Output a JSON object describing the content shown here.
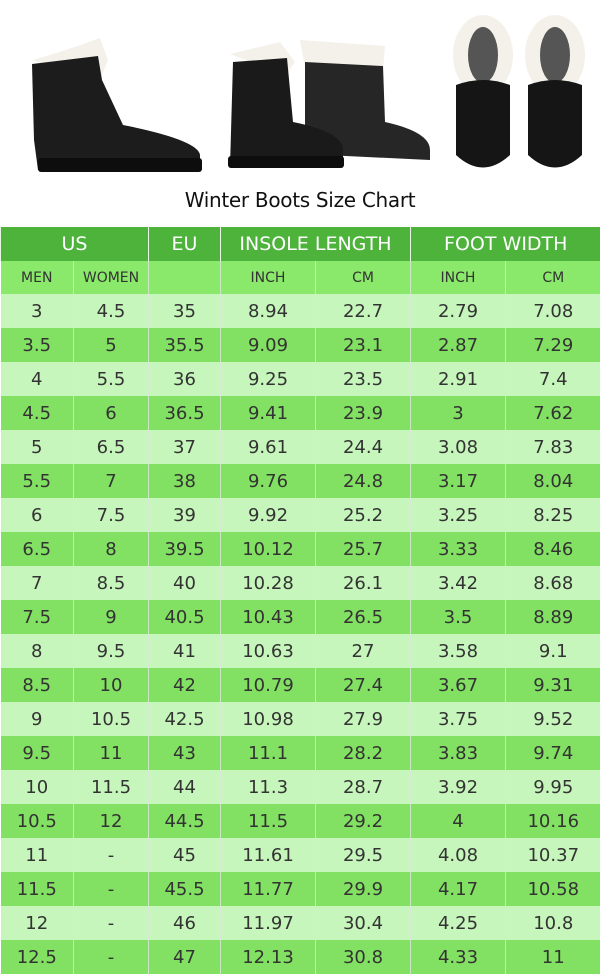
{
  "title": "Winter Boots Size Chart",
  "images": [
    {
      "icon": "boot-side-icon"
    },
    {
      "icon": "boot-pair-angled-icon"
    },
    {
      "icon": "boot-pair-top-icon"
    }
  ],
  "colors": {
    "header": "#4db33b",
    "subheader": "#8ae86a",
    "row_light": "#c6f6bb",
    "row_dark": "#82e062"
  },
  "header": {
    "groups": [
      "US",
      "EU",
      "INSOLE LENGTH",
      "FOOT WIDTH"
    ],
    "sub": [
      "MEN",
      "WOMEN",
      "",
      "INCH",
      "CM",
      "INCH",
      "CM"
    ]
  },
  "rows": [
    [
      "3",
      "4.5",
      "35",
      "8.94",
      "22.7",
      "2.79",
      "7.08"
    ],
    [
      "3.5",
      "5",
      "35.5",
      "9.09",
      "23.1",
      "2.87",
      "7.29"
    ],
    [
      "4",
      "5.5",
      "36",
      "9.25",
      "23.5",
      "2.91",
      "7.4"
    ],
    [
      "4.5",
      "6",
      "36.5",
      "9.41",
      "23.9",
      "3",
      "7.62"
    ],
    [
      "5",
      "6.5",
      "37",
      "9.61",
      "24.4",
      "3.08",
      "7.83"
    ],
    [
      "5.5",
      "7",
      "38",
      "9.76",
      "24.8",
      "3.17",
      "8.04"
    ],
    [
      "6",
      "7.5",
      "39",
      "9.92",
      "25.2",
      "3.25",
      "8.25"
    ],
    [
      "6.5",
      "8",
      "39.5",
      "10.12",
      "25.7",
      "3.33",
      "8.46"
    ],
    [
      "7",
      "8.5",
      "40",
      "10.28",
      "26.1",
      "3.42",
      "8.68"
    ],
    [
      "7.5",
      "9",
      "40.5",
      "10.43",
      "26.5",
      "3.5",
      "8.89"
    ],
    [
      "8",
      "9.5",
      "41",
      "10.63",
      "27",
      "3.58",
      "9.1"
    ],
    [
      "8.5",
      "10",
      "42",
      "10.79",
      "27.4",
      "3.67",
      "9.31"
    ],
    [
      "9",
      "10.5",
      "42.5",
      "10.98",
      "27.9",
      "3.75",
      "9.52"
    ],
    [
      "9.5",
      "11",
      "43",
      "11.1",
      "28.2",
      "3.83",
      "9.74"
    ],
    [
      "10",
      "11.5",
      "44",
      "11.3",
      "28.7",
      "3.92",
      "9.95"
    ],
    [
      "10.5",
      "12",
      "44.5",
      "11.5",
      "29.2",
      "4",
      "10.16"
    ],
    [
      "11",
      "-",
      "45",
      "11.61",
      "29.5",
      "4.08",
      "10.37"
    ],
    [
      "11.5",
      "-",
      "45.5",
      "11.77",
      "29.9",
      "4.17",
      "10.58"
    ],
    [
      "12",
      "-",
      "46",
      "11.97",
      "30.4",
      "4.25",
      "10.8"
    ],
    [
      "12.5",
      "-",
      "47",
      "12.13",
      "30.8",
      "4.33",
      "11"
    ]
  ]
}
